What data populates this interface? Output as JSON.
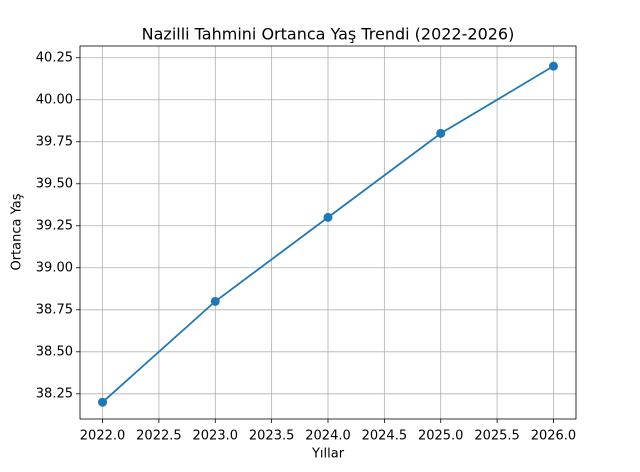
{
  "chart_data": {
    "type": "line",
    "title": "Nazilli Tahmini Ortanca Yaş Trendi (2022-2026)",
    "xlabel": "Yıllar",
    "ylabel": "Ortanca Yaş",
    "x": [
      2022,
      2023,
      2024,
      2025,
      2026
    ],
    "values": [
      38.2,
      38.8,
      39.3,
      39.8,
      40.2
    ],
    "color": "#1f77b4",
    "marker": true,
    "grid": true,
    "xlim": [
      2021.8,
      2026.2
    ],
    "xticks": [
      {
        "value": 2022,
        "label": "2022.0"
      },
      {
        "value": 2022.5,
        "label": "2022.5"
      },
      {
        "value": 2023,
        "label": "2023.0"
      },
      {
        "value": 2023.5,
        "label": "2023.5"
      },
      {
        "value": 2024,
        "label": "2024.0"
      },
      {
        "value": 2024.5,
        "label": "2024.5"
      },
      {
        "value": 2025,
        "label": "2025.0"
      },
      {
        "value": 2025.5,
        "label": "2025.5"
      },
      {
        "value": 2026,
        "label": "2026.0"
      }
    ],
    "ylim": [
      38.1,
      40.32
    ],
    "yticks": [
      38.25,
      {
        "value": 38.5,
        "label": "38.50"
      },
      38.75,
      {
        "value": 39,
        "label": "39.00"
      },
      39.25,
      {
        "value": 39.5,
        "label": "39.50"
      },
      39.75,
      {
        "value": 40,
        "label": "40.00"
      },
      40.25
    ]
  }
}
